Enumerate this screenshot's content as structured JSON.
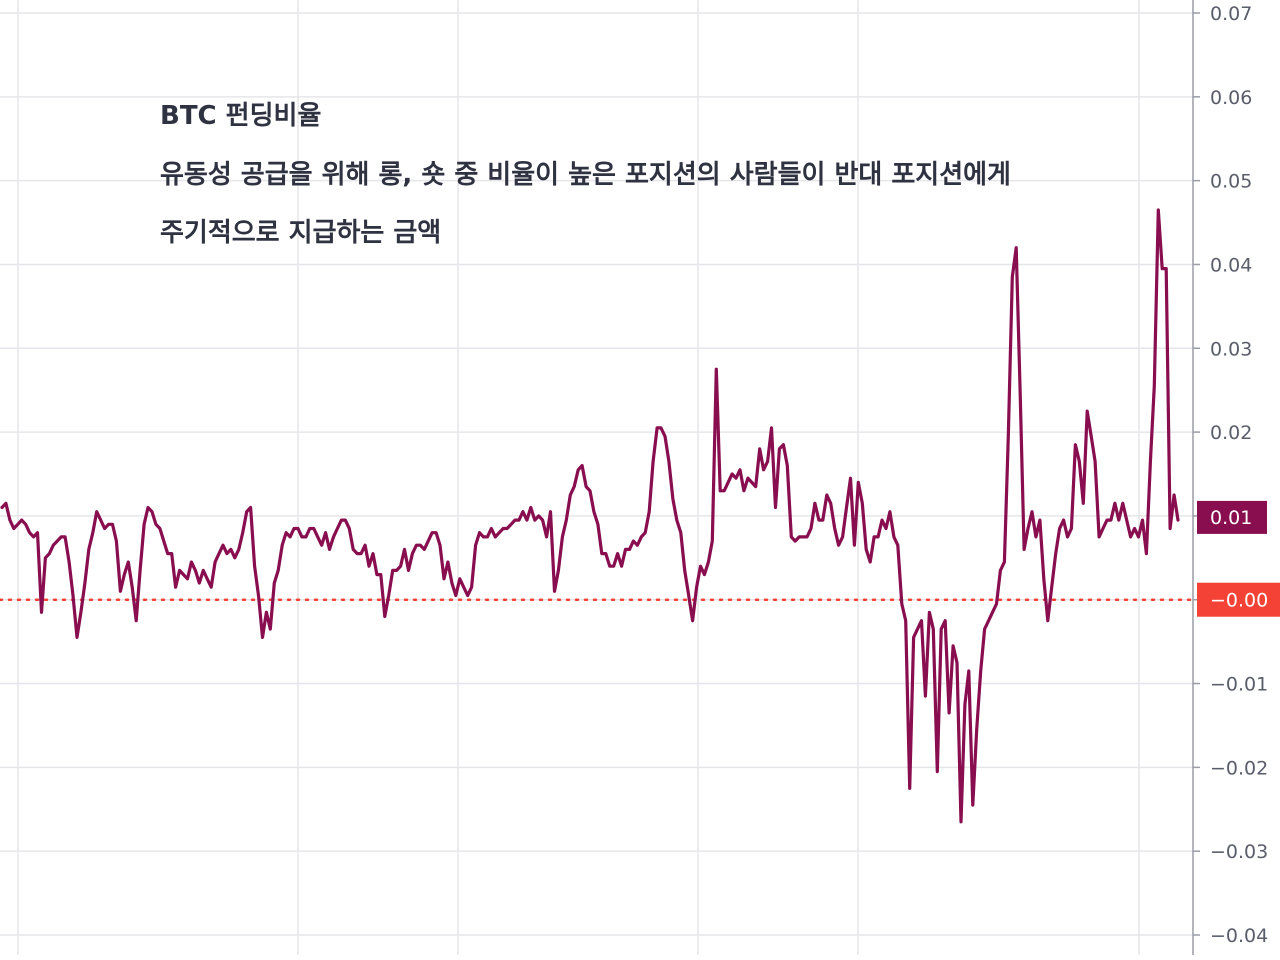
{
  "chart_data": {
    "type": "line",
    "title": "BTC 펀딩비율",
    "annotations": [
      "유동성 공급을 위해 롱, 숏 중 비율이 높은 포지션의 사람들이 반대 포지션에게",
      "주기적으로 지급하는 금액"
    ],
    "ylim": [
      -0.04,
      0.07
    ],
    "y_ticks": [
      0.07,
      0.06,
      0.05,
      0.04,
      0.03,
      0.02,
      0.01,
      0.0,
      -0.01,
      -0.02,
      -0.03,
      -0.04
    ],
    "y_tick_labels": [
      "0.07",
      "0.06",
      "0.05",
      "0.04",
      "0.03",
      "0.02",
      "0.01",
      "0.00",
      "−0.01",
      "−0.02",
      "−0.03",
      "−0.04"
    ],
    "x_labels_shown": false,
    "grid": true,
    "series": [
      {
        "color": "#880e4f",
        "values": [
          0.011,
          0.0115,
          0.0095,
          0.0085,
          0.009,
          0.0095,
          0.009,
          0.008,
          0.0075,
          0.008,
          -0.0015,
          0.005,
          0.0055,
          0.0065,
          0.007,
          0.0075,
          0.0075,
          0.0045,
          0.0005,
          -0.0045,
          -0.0015,
          0.002,
          0.006,
          0.008,
          0.0105,
          0.0095,
          0.0085,
          0.009,
          0.009,
          0.007,
          0.001,
          0.003,
          0.0045,
          0.0015,
          -0.0025,
          0.0035,
          0.009,
          0.011,
          0.0105,
          0.009,
          0.0085,
          0.007,
          0.0055,
          0.0055,
          0.0015,
          0.0035,
          0.003,
          0.0025,
          0.0045,
          0.0035,
          0.002,
          0.0035,
          0.0025,
          0.0015,
          0.0045,
          0.0055,
          0.0065,
          0.0055,
          0.006,
          0.005,
          0.006,
          0.008,
          0.0105,
          0.011,
          0.004,
          0.0005,
          -0.0045,
          -0.0015,
          -0.0035,
          0.002,
          0.0035,
          0.0065,
          0.008,
          0.0075,
          0.0085,
          0.0085,
          0.0075,
          0.0075,
          0.0085,
          0.0085,
          0.0075,
          0.0065,
          0.008,
          0.006,
          0.0075,
          0.0085,
          0.0095,
          0.0095,
          0.0085,
          0.006,
          0.0055,
          0.0055,
          0.0065,
          0.004,
          0.0055,
          0.003,
          0.003,
          -0.002,
          0.0005,
          0.0035,
          0.0035,
          0.004,
          0.006,
          0.0035,
          0.0055,
          0.0065,
          0.0065,
          0.006,
          0.007,
          0.008,
          0.008,
          0.0065,
          0.0025,
          0.0045,
          0.002,
          0.0005,
          0.0025,
          0.0015,
          0.0005,
          0.0015,
          0.0065,
          0.008,
          0.0075,
          0.0075,
          0.0085,
          0.0075,
          0.008,
          0.0085,
          0.0085,
          0.009,
          0.0095,
          0.0095,
          0.0105,
          0.0095,
          0.011,
          0.0095,
          0.01,
          0.0095,
          0.0075,
          0.0105,
          0.001,
          0.0035,
          0.0075,
          0.0095,
          0.0125,
          0.0135,
          0.0155,
          0.016,
          0.0135,
          0.013,
          0.0105,
          0.009,
          0.0055,
          0.0055,
          0.004,
          0.004,
          0.0055,
          0.004,
          0.006,
          0.006,
          0.007,
          0.0065,
          0.0075,
          0.008,
          0.0105,
          0.0165,
          0.0205,
          0.0205,
          0.0195,
          0.0165,
          0.012,
          0.0095,
          0.008,
          0.0035,
          0.0005,
          -0.0025,
          0.0015,
          0.004,
          0.003,
          0.0045,
          0.007,
          0.0275,
          0.013,
          0.013,
          0.014,
          0.015,
          0.0145,
          0.0155,
          0.013,
          0.0145,
          0.014,
          0.0135,
          0.018,
          0.0155,
          0.0165,
          0.0205,
          0.011,
          0.018,
          0.0185,
          0.016,
          0.0075,
          0.007,
          0.0075,
          0.0075,
          0.0075,
          0.0085,
          0.0115,
          0.0095,
          0.0095,
          0.0125,
          0.0115,
          0.0085,
          0.0065,
          0.0075,
          0.011,
          0.0145,
          0.0065,
          0.014,
          0.0115,
          0.006,
          0.0045,
          0.0075,
          0.0075,
          0.0095,
          0.0085,
          0.0105,
          0.0075,
          0.0065,
          -0.0005,
          -0.0025,
          -0.0225,
          -0.0045,
          -0.0035,
          -0.0025,
          -0.0115,
          -0.0015,
          -0.0035,
          -0.0205,
          -0.0035,
          -0.0025,
          -0.0135,
          -0.0055,
          -0.0075,
          -0.0265,
          -0.0125,
          -0.0085,
          -0.0245,
          -0.0155,
          -0.0085,
          -0.0035,
          -0.0025,
          -0.0015,
          -0.0005,
          0.0035,
          0.0045,
          0.0195,
          0.0385,
          0.042,
          0.025,
          0.006,
          0.0085,
          0.0105,
          0.0075,
          0.0095,
          0.0025,
          -0.0025,
          0.0015,
          0.0055,
          0.0085,
          0.0095,
          0.0075,
          0.0085,
          0.0185,
          0.0165,
          0.0115,
          0.0225,
          0.0195,
          0.0165,
          0.0075,
          0.0085,
          0.0095,
          0.0095,
          0.0115,
          0.0095,
          0.0115,
          0.0095,
          0.0075,
          0.0085,
          0.0075,
          0.0095,
          0.0055,
          0.0165,
          0.0255,
          0.0465,
          0.0395,
          0.0395,
          0.0085,
          0.0125,
          0.0095
        ]
      }
    ],
    "reference_line": {
      "value": 0.0,
      "label": "−0.00",
      "color": "#f44336",
      "style": "dotted"
    },
    "last_value_badge": {
      "label": "0.01",
      "color": "#880e4f"
    }
  }
}
